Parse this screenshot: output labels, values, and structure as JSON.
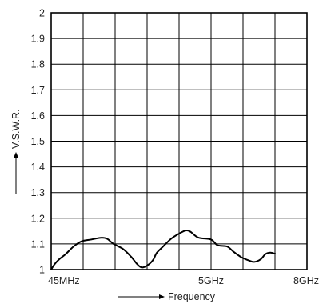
{
  "chart_data": {
    "type": "line",
    "xlabel": "Frequency",
    "ylabel": "V.S.W.R.",
    "ylim": [
      1,
      2
    ],
    "yticks": [
      "1",
      "1.1",
      "1.2",
      "1.3",
      "1.4",
      "1.5",
      "1.6",
      "1.7",
      "1.8",
      "1.9",
      "2"
    ],
    "xticks": [
      "45MHz",
      "5GHz",
      "8GHz"
    ],
    "x_gridlines": 8,
    "grid": true,
    "series_color": "#000000",
    "series": [
      {
        "points": [
          [
            0,
            1.0
          ],
          [
            0.1,
            1.02
          ],
          [
            0.25,
            1.04
          ],
          [
            0.45,
            1.06
          ],
          [
            0.7,
            1.09
          ],
          [
            0.95,
            1.11
          ],
          [
            1.25,
            1.117
          ],
          [
            1.55,
            1.124
          ],
          [
            1.75,
            1.12
          ],
          [
            1.95,
            1.1
          ],
          [
            2.25,
            1.08
          ],
          [
            2.5,
            1.05
          ],
          [
            2.7,
            1.02
          ],
          [
            2.85,
            1.008
          ],
          [
            3.05,
            1.02
          ],
          [
            3.2,
            1.04
          ],
          [
            3.3,
            1.065
          ],
          [
            3.5,
            1.09
          ],
          [
            3.75,
            1.12
          ],
          [
            4.0,
            1.14
          ],
          [
            4.2,
            1.152
          ],
          [
            4.35,
            1.148
          ],
          [
            4.6,
            1.125
          ],
          [
            5.0,
            1.117
          ],
          [
            5.2,
            1.095
          ],
          [
            5.5,
            1.09
          ],
          [
            5.7,
            1.07
          ],
          [
            5.95,
            1.048
          ],
          [
            6.2,
            1.035
          ],
          [
            6.35,
            1.03
          ],
          [
            6.55,
            1.04
          ],
          [
            6.7,
            1.06
          ],
          [
            6.85,
            1.066
          ],
          [
            7.0,
            1.062
          ]
        ]
      }
    ]
  }
}
